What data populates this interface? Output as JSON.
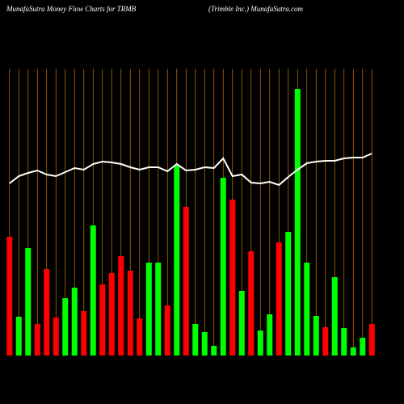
{
  "chart_data": {
    "type": "bar",
    "title": "MunafaSutra  Money Flow  Charts for TRMB",
    "subtitle": "(Trimble   Inc.) MunafaSutra.com",
    "ylim": [
      0,
      340
    ],
    "series": [
      {
        "name": "Money Flow",
        "colors": [
          "#ff0000",
          "#00ff00",
          "#00ff00",
          "#ff0000",
          "#ff0000",
          "#ff0000",
          "#00ff00",
          "#00ff00",
          "#ff0000",
          "#00ff00",
          "#ff0000",
          "#ff0000",
          "#ff0000",
          "#ff0000",
          "#ff0000",
          "#00ff00",
          "#00ff00",
          "#ff0000",
          "#00ff00",
          "#ff0000",
          "#00ff00",
          "#00ff00",
          "#00ff00",
          "#00ff00",
          "#ff0000",
          "#00ff00",
          "#ff0000",
          "#00ff00",
          "#00ff00",
          "#ff0000",
          "#00ff00",
          "#00ff00",
          "#00ff00",
          "#00ff00",
          "#ff0000",
          "#00ff00",
          "#00ff00",
          "#00ff00",
          "#00ff00",
          "#ff0000"
        ],
        "values": [
          147,
          48,
          133,
          39,
          107,
          47,
          71,
          84,
          55,
          161,
          88,
          102,
          123,
          105,
          46,
          115,
          115,
          62,
          235,
          184,
          39,
          29,
          12,
          220,
          193,
          80,
          129,
          31,
          51,
          140,
          153,
          330,
          115,
          49,
          35,
          97,
          34,
          10,
          22,
          39
        ]
      },
      {
        "name": "Price",
        "color": "#ffffff",
        "values": [
          213,
          222,
          226,
          229,
          224,
          222,
          227,
          232,
          230,
          237,
          240,
          239,
          237,
          233,
          230,
          233,
          233,
          228,
          237,
          229,
          230,
          233,
          232,
          244,
          222,
          224,
          214,
          213,
          215,
          211,
          221,
          230,
          238,
          240,
          241,
          241,
          244,
          245,
          245,
          250
        ]
      }
    ],
    "grid_color": "#c87800"
  }
}
